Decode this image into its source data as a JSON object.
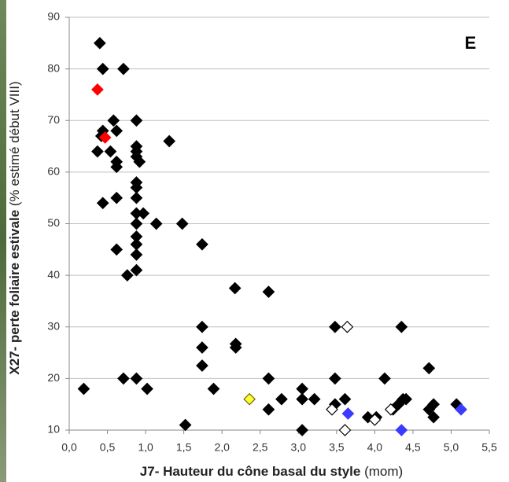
{
  "chart_data": {
    "type": "scatter",
    "title": "E",
    "x_label": "J7- Hauteur du cône basal du style",
    "x_label_unit": "(mom)",
    "y_label": "X27- perte foliaire estivale",
    "y_label_unit": "(% estimé début VIII)",
    "xlim": [
      0,
      5.5
    ],
    "ylim": [
      10,
      90
    ],
    "xticks": [
      {
        "value": 0,
        "label": "0,0"
      },
      {
        "value": 0.5,
        "label": "0,5"
      },
      {
        "value": 1,
        "label": "1,0"
      },
      {
        "value": 1.5,
        "label": "1,5"
      },
      {
        "value": 2,
        "label": "2,0"
      },
      {
        "value": 2.5,
        "label": "2,5"
      },
      {
        "value": 3,
        "label": "3,0"
      },
      {
        "value": 3.5,
        "label": "3,5"
      },
      {
        "value": 4,
        "label": "4,0"
      },
      {
        "value": 4.5,
        "label": "4,5"
      },
      {
        "value": 5,
        "label": "5,0"
      },
      {
        "value": 5.5,
        "label": "5,5"
      }
    ],
    "yticks": [
      10,
      20,
      30,
      40,
      50,
      60,
      70,
      80,
      90
    ],
    "grid": true,
    "series": [
      {
        "color": "#000000",
        "edgecolor": "#000000",
        "x": [
          0.4,
          0.44,
          0.71,
          0.44,
          0.42,
          0.58,
          0.62,
          0.37,
          0.54,
          0.62,
          0.62,
          0.88,
          0.88,
          0.88,
          0.88,
          0.92,
          0.88,
          0.88,
          0.88,
          0.44,
          0.62,
          0.88,
          0.97,
          0.88,
          1.14,
          0.88,
          0.88,
          0.88,
          0.88,
          0.62,
          0.76,
          1.31,
          1.48,
          1.74,
          2.17,
          2.61,
          1.74,
          1.74,
          1.74,
          2.18,
          2.18,
          0.19,
          0.71,
          0.88,
          1.02,
          1.52,
          1.89,
          2.61,
          2.61,
          2.78,
          3.05,
          3.05,
          3.05,
          3.21,
          3.48,
          3.48,
          3.48,
          3.61,
          3.91,
          4.02,
          4.13,
          4.24,
          4.31,
          4.35,
          4.37,
          4.41,
          4.71,
          4.71,
          4.77,
          4.77,
          5.07
        ],
        "values": [
          85,
          80,
          80,
          68,
          67,
          70,
          68,
          64,
          64,
          62,
          61,
          70,
          65,
          64,
          63,
          62,
          58,
          57,
          55,
          54,
          55,
          52,
          52,
          50,
          50,
          47.5,
          46,
          44,
          41,
          45,
          40,
          66,
          50,
          46,
          37.5,
          36.8,
          30,
          26,
          22.5,
          26.7,
          26,
          18,
          20,
          20,
          18,
          11,
          18,
          20,
          14,
          16,
          18,
          16,
          10,
          16,
          30,
          20,
          15,
          16,
          12.5,
          12.5,
          20,
          14,
          15,
          30,
          16,
          16,
          22,
          14,
          15,
          12.5,
          15
        ]
      },
      {
        "color": "#ff0000",
        "edgecolor": "#ff0000",
        "x": [
          0.37,
          0.47
        ],
        "values": [
          76,
          66.7
        ]
      },
      {
        "color": "#3b3bff",
        "edgecolor": "#3b3bff",
        "x": [
          3.65,
          4.35,
          5.13
        ],
        "values": [
          13.2,
          10,
          14
        ]
      },
      {
        "color": "#ffff33",
        "edgecolor": "#666600",
        "x": [
          2.36
        ],
        "values": [
          16
        ]
      },
      {
        "color": "#ffffff",
        "edgecolor": "#000000",
        "x": [
          3.64,
          3.44,
          3.61,
          4.0,
          4.21
        ],
        "values": [
          30,
          14,
          10,
          12,
          14
        ]
      }
    ]
  }
}
